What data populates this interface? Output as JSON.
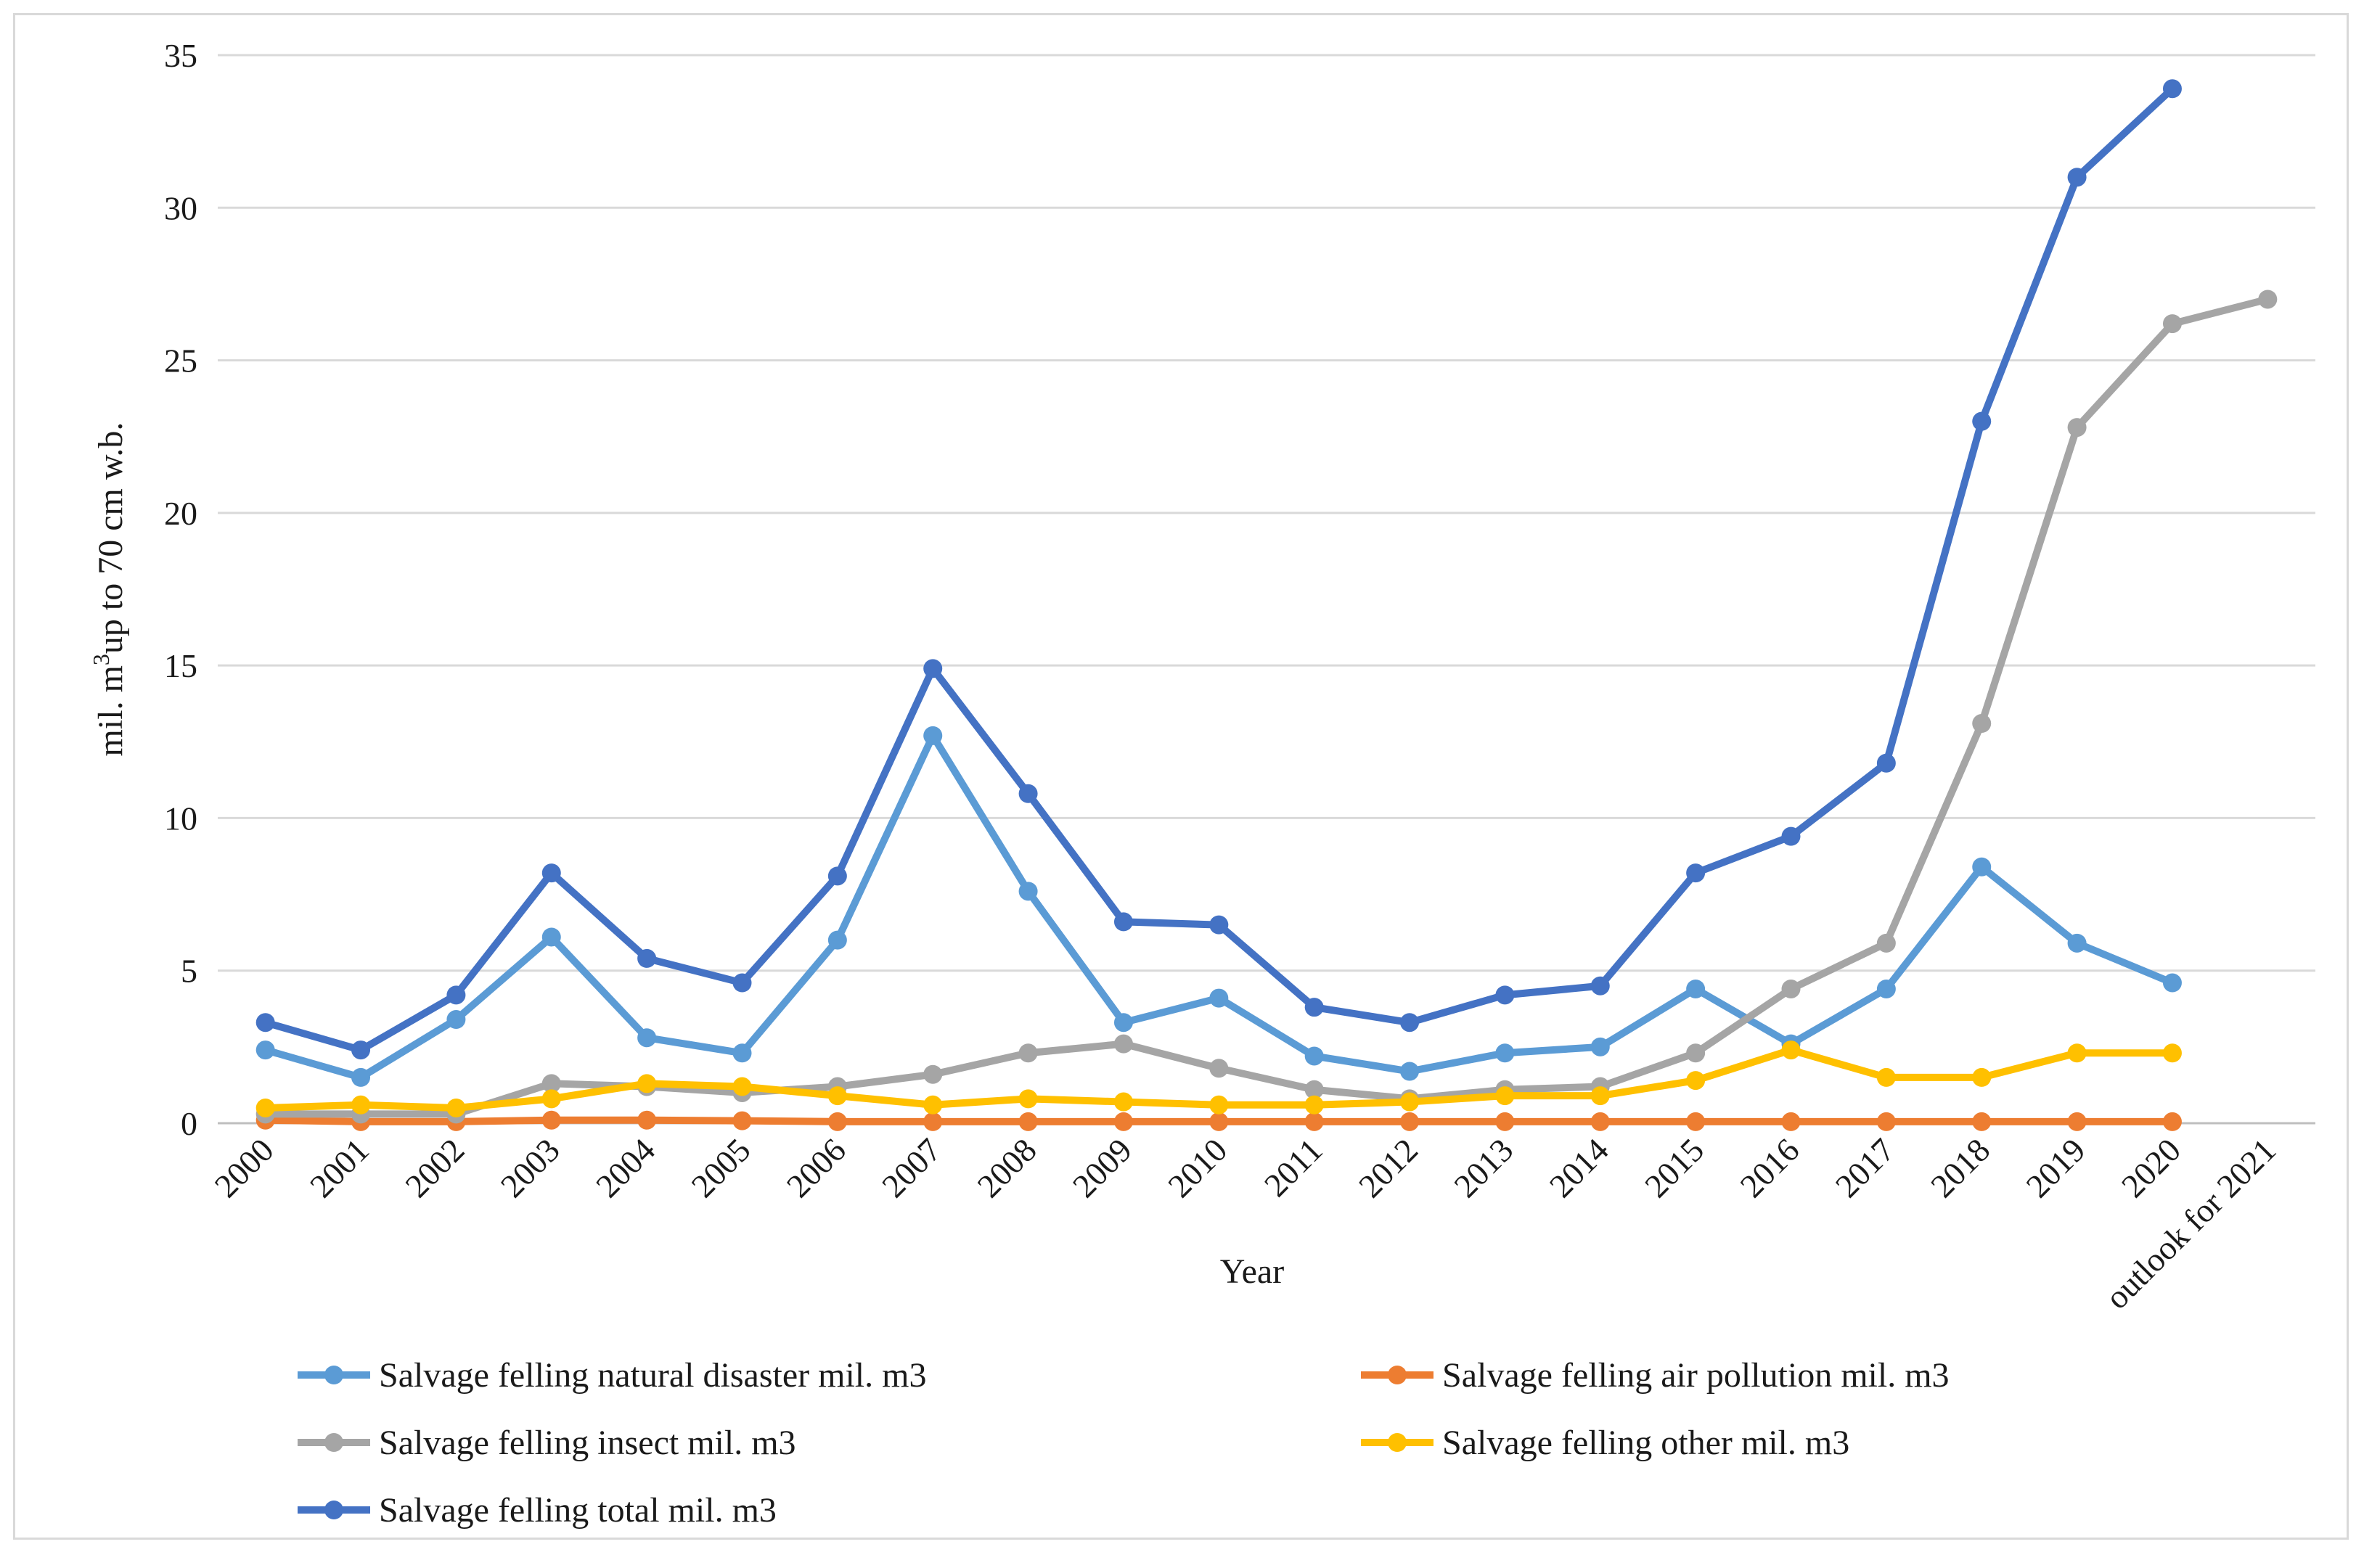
{
  "chart_data": {
    "type": "line",
    "title": "",
    "xlabel": "Year",
    "ylabel": "mil. m³up to 70 cm w.b.",
    "ylabel_parts": {
      "pre": "mil. m",
      "sup": "3",
      "post": "up to 70 cm w.b."
    },
    "ylim": [
      0,
      35
    ],
    "yticks": [
      0,
      5,
      10,
      15,
      20,
      25,
      30,
      35
    ],
    "categories": [
      "2000",
      "2001",
      "2002",
      "2003",
      "2004",
      "2005",
      "2006",
      "2007",
      "2008",
      "2009",
      "2010",
      "2011",
      "2012",
      "2013",
      "2014",
      "2015",
      "2016",
      "2017",
      "2018",
      "2019",
      "2020",
      "outlook for 2021"
    ],
    "grid": true,
    "legend_position": "bottom",
    "series": [
      {
        "name": "Salvage felling natural disaster  mil. m3",
        "color": "#5b9bd5",
        "values": [
          2.4,
          1.5,
          3.4,
          6.1,
          2.8,
          2.3,
          6.0,
          12.7,
          7.6,
          3.3,
          4.1,
          2.2,
          1.7,
          2.3,
          2.5,
          4.4,
          2.6,
          4.4,
          8.4,
          5.9,
          4.6,
          null
        ]
      },
      {
        "name": "Salvage felling air pollution mil. m3",
        "color": "#ed7d31",
        "values": [
          0.1,
          0.05,
          0.05,
          0.1,
          0.1,
          0.08,
          0.05,
          0.05,
          0.05,
          0.05,
          0.05,
          0.05,
          0.05,
          0.05,
          0.05,
          0.05,
          0.05,
          0.05,
          0.05,
          0.05,
          0.05,
          null
        ]
      },
      {
        "name": "Salvage felling insect  mil. m3",
        "color": "#a5a5a5",
        "values": [
          0.3,
          0.3,
          0.3,
          1.3,
          1.2,
          1.0,
          1.2,
          1.6,
          2.3,
          2.6,
          1.8,
          1.1,
          0.8,
          1.1,
          1.2,
          2.3,
          4.4,
          5.9,
          13.1,
          22.8,
          26.2,
          27.0
        ]
      },
      {
        "name": "Salvage felling other  mil. m3",
        "color": "#ffc000",
        "values": [
          0.5,
          0.6,
          0.5,
          0.8,
          1.3,
          1.2,
          0.9,
          0.6,
          0.8,
          0.7,
          0.6,
          0.6,
          0.7,
          0.9,
          0.9,
          1.4,
          2.4,
          1.5,
          1.5,
          2.3,
          2.3,
          null
        ]
      },
      {
        "name": "Salvage felling total  mil. m3",
        "color": "#4472c4",
        "values": [
          3.3,
          2.4,
          4.2,
          8.2,
          5.4,
          4.6,
          8.1,
          14.9,
          10.8,
          6.6,
          6.5,
          3.8,
          3.3,
          4.2,
          4.5,
          8.2,
          9.4,
          11.8,
          23.0,
          31.0,
          33.9,
          null
        ]
      }
    ]
  }
}
